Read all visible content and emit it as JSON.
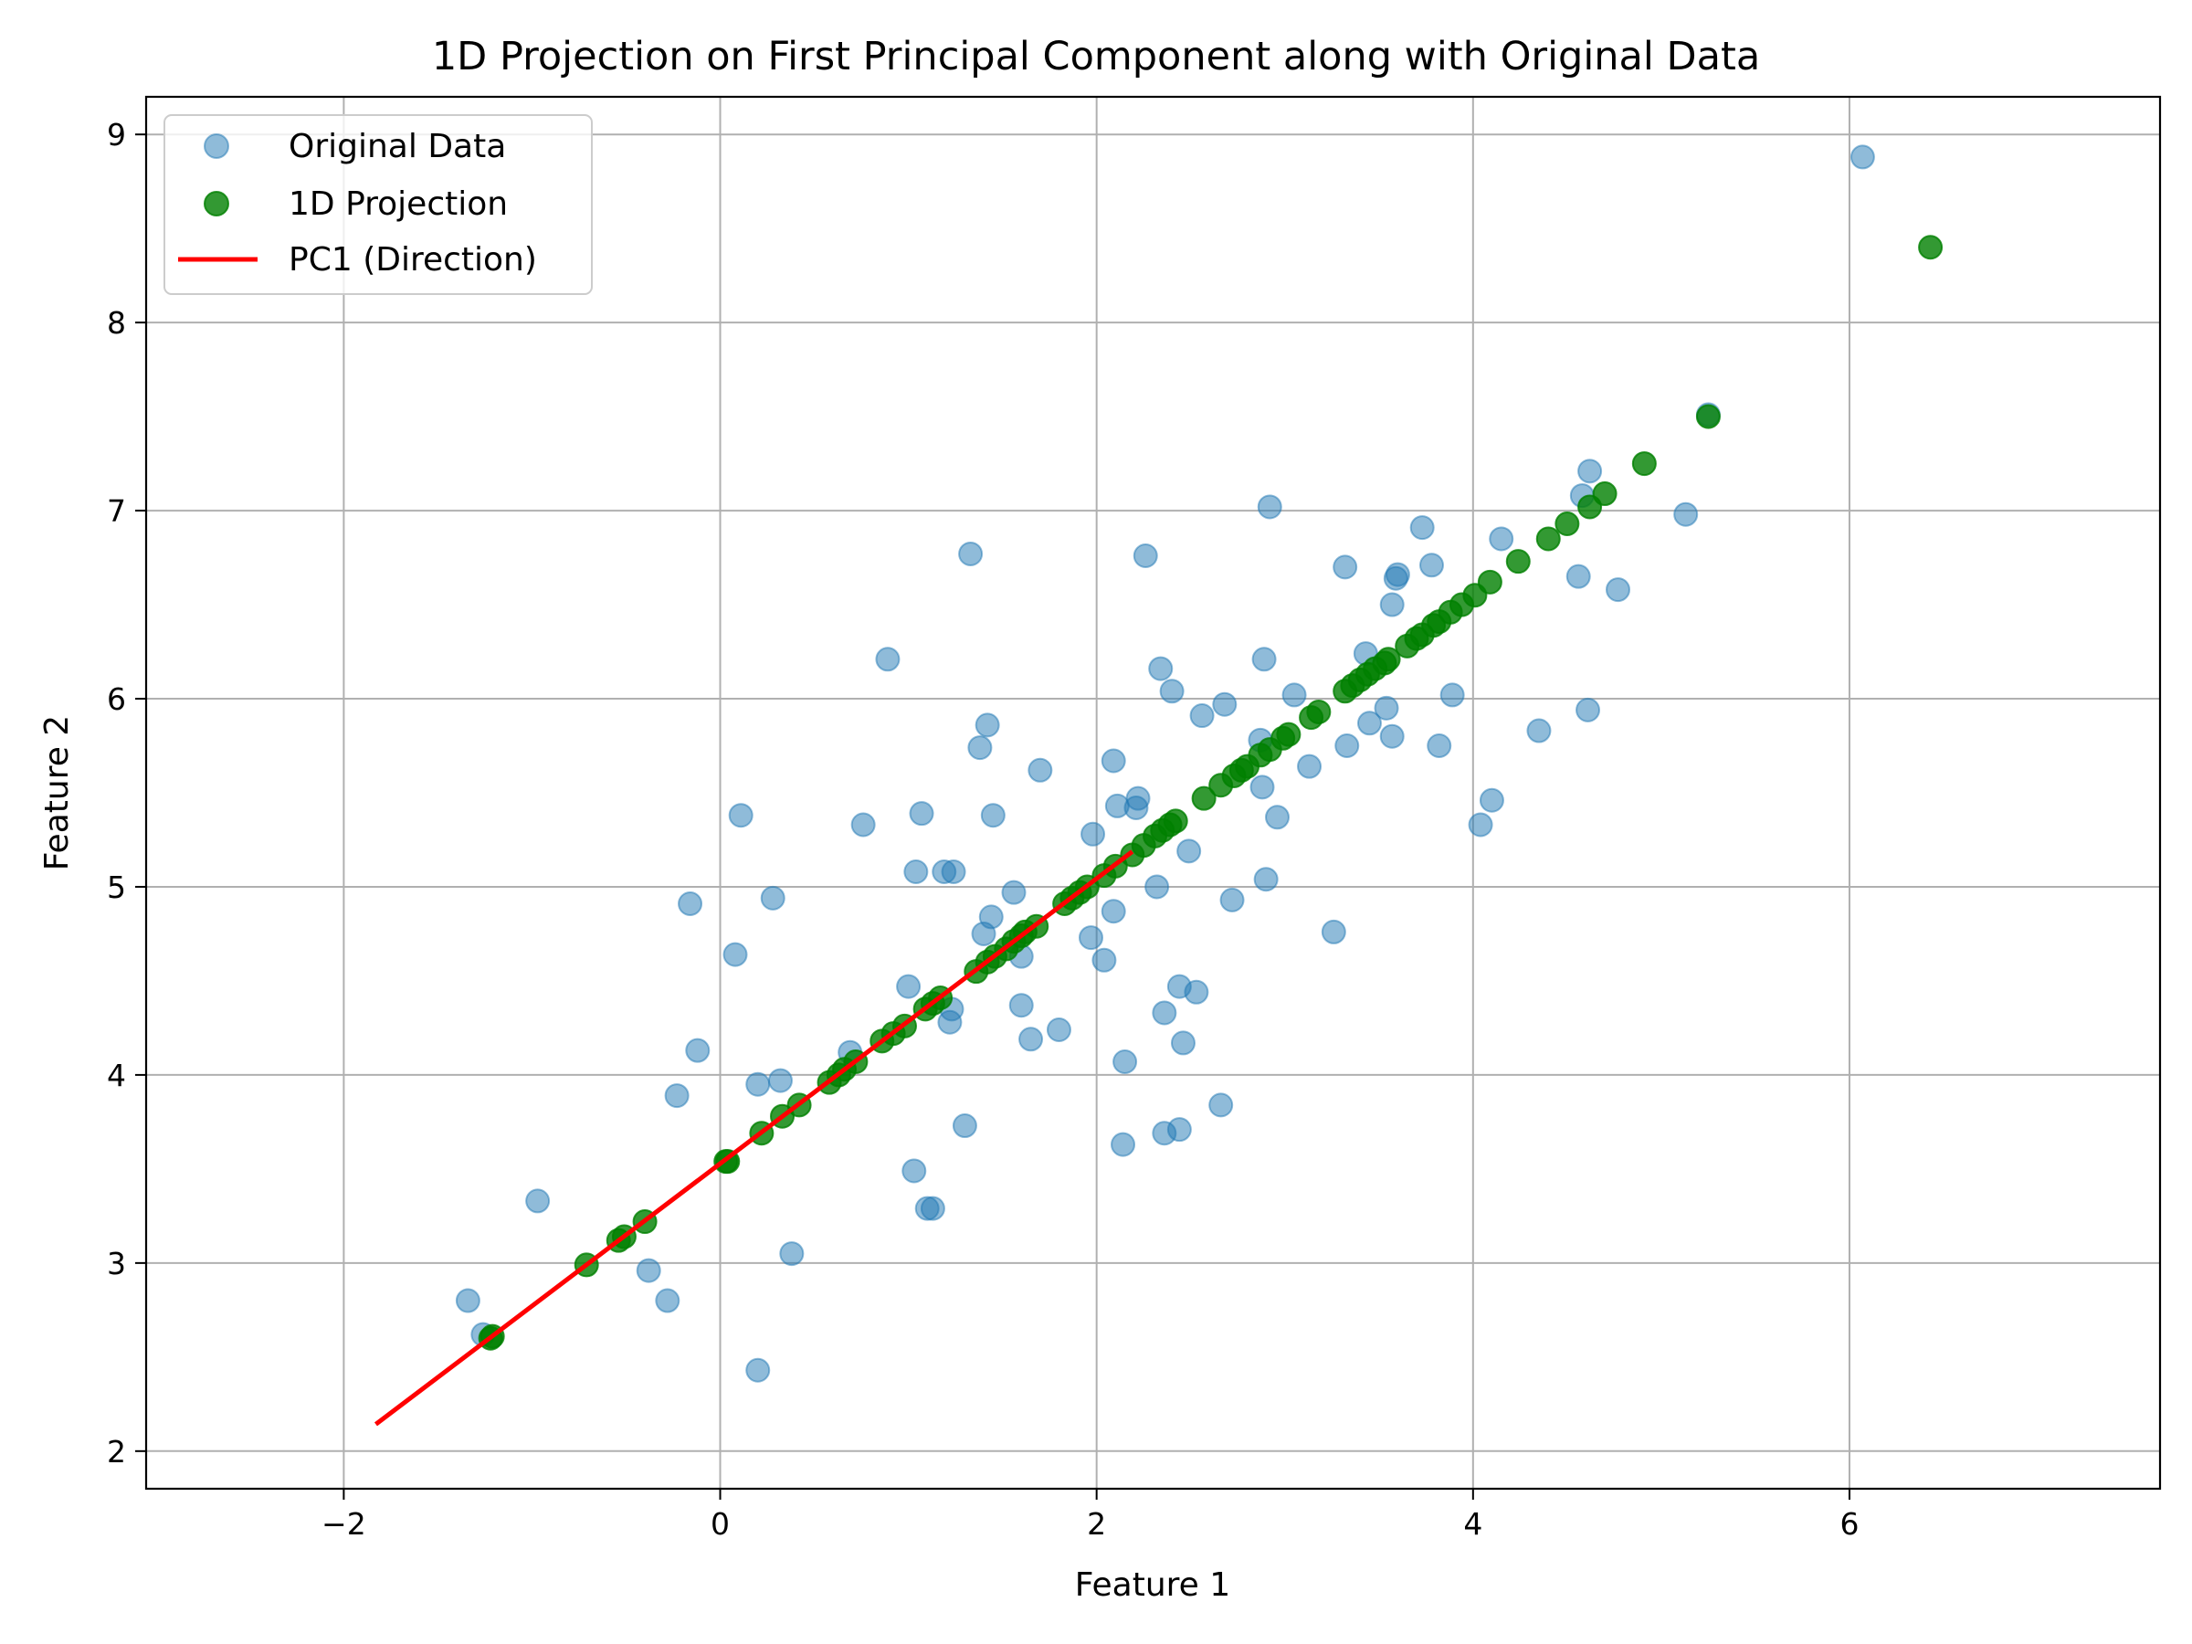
{
  "chart_data": {
    "type": "scatter",
    "title": "1D Projection on First Principal Component along with Original Data",
    "xlabel": "Feature 1",
    "ylabel": "Feature 2",
    "xlim": [
      -3.05,
      7.65
    ],
    "ylim": [
      1.8,
      9.2
    ],
    "xticks": [
      -2,
      0,
      2,
      4,
      6
    ],
    "yticks": [
      2,
      3,
      4,
      5,
      6,
      7,
      8,
      9
    ],
    "xtick_labels": [
      "−2",
      "0",
      "2",
      "4",
      "6"
    ],
    "ytick_labels": [
      "2",
      "3",
      "4",
      "5",
      "6",
      "7",
      "8",
      "9"
    ],
    "grid": true,
    "legend_position": "top-left",
    "legend": [
      {
        "label": "Original Data",
        "marker": "circle",
        "color": "#1f77b4"
      },
      {
        "label": "1D Projection",
        "marker": "circle",
        "color": "#008000"
      },
      {
        "label": "PC1 (Direction)",
        "marker": "line",
        "color": "#ff0000"
      }
    ],
    "series": [
      {
        "name": "Original Data",
        "kind": "scatter",
        "color": "#1f77b4",
        "opacity": 0.5,
        "points": [
          [
            -1.34,
            2.8
          ],
          [
            -1.26,
            2.62
          ],
          [
            -0.97,
            3.33
          ],
          [
            -0.38,
            2.96
          ],
          [
            -0.28,
            2.8
          ],
          [
            -0.23,
            3.89
          ],
          [
            -0.16,
            4.91
          ],
          [
            -0.12,
            4.13
          ],
          [
            0.08,
            4.64
          ],
          [
            0.11,
            5.38
          ],
          [
            0.2,
            2.43
          ],
          [
            0.2,
            3.95
          ],
          [
            0.28,
            4.94
          ],
          [
            0.32,
            3.97
          ],
          [
            0.38,
            3.05
          ],
          [
            0.69,
            4.12
          ],
          [
            0.76,
            5.33
          ],
          [
            0.89,
            6.21
          ],
          [
            1.0,
            4.47
          ],
          [
            1.03,
            3.49
          ],
          [
            1.04,
            5.08
          ],
          [
            1.07,
            5.39
          ],
          [
            1.1,
            3.29
          ],
          [
            1.13,
            3.29
          ],
          [
            1.19,
            5.08
          ],
          [
            1.22,
            4.28
          ],
          [
            1.23,
            4.35
          ],
          [
            1.24,
            5.08
          ],
          [
            1.3,
            3.73
          ],
          [
            1.33,
            6.77
          ],
          [
            1.38,
            5.74
          ],
          [
            1.4,
            4.75
          ],
          [
            1.42,
            5.86
          ],
          [
            1.44,
            4.84
          ],
          [
            1.45,
            5.38
          ],
          [
            1.56,
            4.97
          ],
          [
            1.6,
            4.63
          ],
          [
            1.6,
            4.37
          ],
          [
            1.65,
            4.19
          ],
          [
            1.7,
            5.62
          ],
          [
            1.8,
            4.24
          ],
          [
            1.97,
            4.73
          ],
          [
            1.98,
            5.28
          ],
          [
            2.04,
            4.61
          ],
          [
            2.09,
            4.87
          ],
          [
            2.09,
            5.67
          ],
          [
            2.11,
            5.43
          ],
          [
            2.14,
            3.63
          ],
          [
            2.15,
            4.07
          ],
          [
            2.21,
            5.42
          ],
          [
            2.22,
            5.47
          ],
          [
            2.26,
            6.76
          ],
          [
            2.32,
            5.0
          ],
          [
            2.34,
            6.16
          ],
          [
            2.36,
            3.69
          ],
          [
            2.36,
            4.33
          ],
          [
            2.4,
            6.04
          ],
          [
            2.44,
            3.71
          ],
          [
            2.44,
            4.47
          ],
          [
            2.46,
            4.17
          ],
          [
            2.49,
            5.19
          ],
          [
            2.53,
            4.44
          ],
          [
            2.56,
            5.91
          ],
          [
            2.66,
            3.84
          ],
          [
            2.68,
            5.97
          ],
          [
            2.72,
            4.93
          ],
          [
            2.87,
            5.78
          ],
          [
            2.88,
            5.53
          ],
          [
            2.89,
            6.21
          ],
          [
            2.9,
            5.04
          ],
          [
            2.92,
            7.02
          ],
          [
            2.96,
            5.37
          ],
          [
            3.05,
            6.02
          ],
          [
            3.13,
            5.64
          ],
          [
            3.26,
            4.76
          ],
          [
            3.32,
            6.7
          ],
          [
            3.33,
            5.75
          ],
          [
            3.43,
            6.24
          ],
          [
            3.45,
            5.87
          ],
          [
            3.54,
            5.95
          ],
          [
            3.57,
            5.8
          ],
          [
            3.57,
            6.5
          ],
          [
            3.59,
            6.64
          ],
          [
            3.6,
            6.66
          ],
          [
            3.73,
            6.91
          ],
          [
            3.78,
            6.71
          ],
          [
            3.82,
            5.75
          ],
          [
            3.89,
            6.02
          ],
          [
            4.04,
            5.33
          ],
          [
            4.1,
            5.46
          ],
          [
            4.15,
            6.85
          ],
          [
            4.35,
            5.83
          ],
          [
            4.56,
            6.65
          ],
          [
            4.58,
            7.08
          ],
          [
            4.61,
            5.94
          ],
          [
            4.62,
            7.21
          ],
          [
            4.77,
            6.58
          ],
          [
            5.13,
            6.98
          ],
          [
            5.25,
            7.51
          ],
          [
            6.07,
            8.88
          ]
        ]
      },
      {
        "name": "1D Projection",
        "kind": "scatter",
        "color": "#008000",
        "opacity": 0.8,
        "points": [
          [
            -1.22,
            2.6
          ],
          [
            -1.21,
            2.61
          ],
          [
            -0.71,
            2.99
          ],
          [
            -0.54,
            3.12
          ],
          [
            -0.51,
            3.14
          ],
          [
            -0.4,
            3.22
          ],
          [
            0.03,
            3.54
          ],
          [
            0.04,
            3.54
          ],
          [
            0.22,
            3.69
          ],
          [
            0.33,
            3.78
          ],
          [
            0.42,
            3.84
          ],
          [
            0.58,
            3.96
          ],
          [
            0.63,
            4.0
          ],
          [
            0.66,
            4.03
          ],
          [
            0.72,
            4.07
          ],
          [
            0.86,
            4.18
          ],
          [
            0.92,
            4.22
          ],
          [
            0.98,
            4.26
          ],
          [
            1.09,
            4.35
          ],
          [
            1.13,
            4.38
          ],
          [
            1.17,
            4.41
          ],
          [
            1.36,
            4.55
          ],
          [
            1.42,
            4.6
          ],
          [
            1.46,
            4.63
          ],
          [
            1.52,
            4.67
          ],
          [
            1.56,
            4.71
          ],
          [
            1.6,
            4.74
          ],
          [
            1.62,
            4.76
          ],
          [
            1.68,
            4.79
          ],
          [
            1.83,
            4.91
          ],
          [
            1.87,
            4.94
          ],
          [
            1.91,
            4.97
          ],
          [
            1.95,
            5.0
          ],
          [
            2.04,
            5.06
          ],
          [
            2.1,
            5.11
          ],
          [
            2.19,
            5.17
          ],
          [
            2.25,
            5.22
          ],
          [
            2.31,
            5.27
          ],
          [
            2.35,
            5.3
          ],
          [
            2.39,
            5.33
          ],
          [
            2.42,
            5.35
          ],
          [
            2.57,
            5.47
          ],
          [
            2.66,
            5.54
          ],
          [
            2.73,
            5.59
          ],
          [
            2.77,
            5.62
          ],
          [
            2.8,
            5.64
          ],
          [
            2.87,
            5.7
          ],
          [
            2.92,
            5.73
          ],
          [
            2.99,
            5.79
          ],
          [
            3.02,
            5.81
          ],
          [
            3.14,
            5.9
          ],
          [
            3.18,
            5.93
          ],
          [
            3.32,
            6.04
          ],
          [
            3.36,
            6.07
          ],
          [
            3.4,
            6.1
          ],
          [
            3.44,
            6.13
          ],
          [
            3.48,
            6.16
          ],
          [
            3.53,
            6.19
          ],
          [
            3.55,
            6.21
          ],
          [
            3.65,
            6.28
          ],
          [
            3.7,
            6.32
          ],
          [
            3.73,
            6.34
          ],
          [
            3.79,
            6.39
          ],
          [
            3.82,
            6.41
          ],
          [
            3.88,
            6.46
          ],
          [
            3.94,
            6.5
          ],
          [
            4.01,
            6.55
          ],
          [
            4.09,
            6.62
          ],
          [
            4.24,
            6.73
          ],
          [
            4.4,
            6.85
          ],
          [
            4.5,
            6.93
          ],
          [
            4.62,
            7.02
          ],
          [
            4.7,
            7.09
          ],
          [
            4.91,
            7.25
          ],
          [
            5.25,
            7.5
          ],
          [
            6.43,
            8.4
          ]
        ]
      },
      {
        "name": "PC1 (Direction)",
        "kind": "line",
        "color": "#ff0000",
        "points": [
          [
            -1.82,
            2.15
          ],
          [
            2.18,
            5.18
          ]
        ]
      }
    ]
  }
}
